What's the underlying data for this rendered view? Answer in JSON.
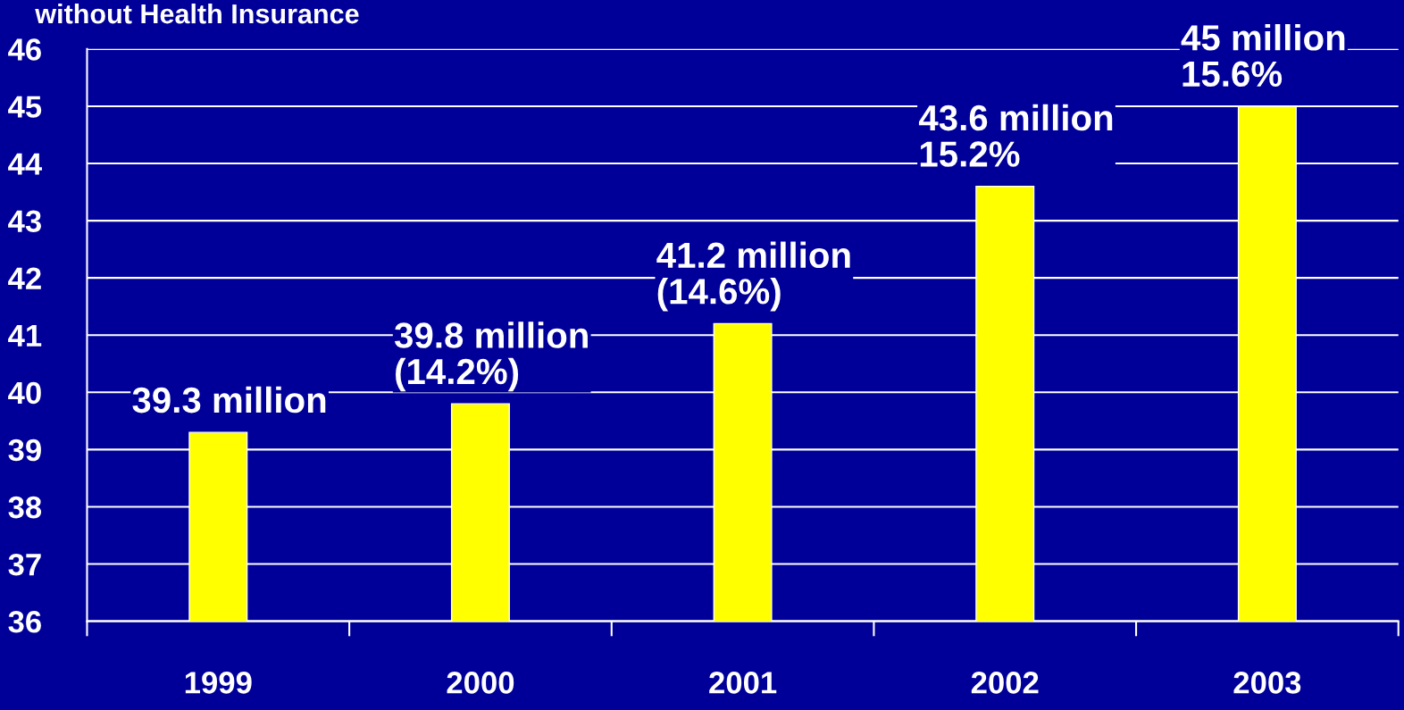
{
  "chart_data": {
    "type": "bar",
    "title": "without Health Insurance",
    "categories": [
      "1999",
      "2000",
      "2001",
      "2002",
      "2003"
    ],
    "values": [
      39.3,
      39.8,
      41.2,
      43.6,
      45
    ],
    "annotations": [
      {
        "text": "39.3 million",
        "x": "1999",
        "y": 39.3
      },
      {
        "text": "39.8 million\n(14.2%)",
        "x": "2000",
        "y": 39.8
      },
      {
        "text": "41.2 million\n(14.6%)",
        "x": "2001",
        "y": 41.2
      },
      {
        "text": "43.6 million\n15.2%",
        "x": "2002",
        "y": 43.6
      },
      {
        "text": "45 million\n15.6%",
        "x": "2003",
        "y": 45
      }
    ],
    "color": "#ffff00",
    "ylim": [
      36,
      46
    ],
    "yticks": [
      36,
      37,
      38,
      39,
      40,
      41,
      42,
      43,
      44,
      45,
      46
    ],
    "grid": "y",
    "legend": false
  }
}
